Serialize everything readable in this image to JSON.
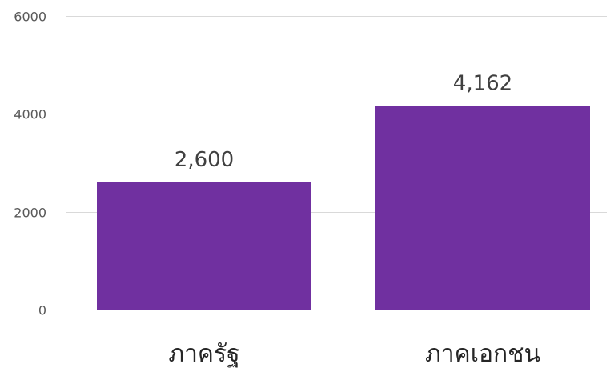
{
  "chart_data": {
    "type": "bar",
    "title": "",
    "xlabel": "",
    "ylabel": "",
    "categories": [
      "ภาครัฐ",
      "ภาคเอกชน"
    ],
    "values": [
      2600,
      4162
    ],
    "data_labels": [
      "2,600",
      "4,162"
    ],
    "ylim": [
      0,
      6000
    ],
    "yticks": [
      0,
      2000,
      4000,
      6000
    ],
    "ytick_labels": [
      "0",
      "2000",
      "4000",
      "6000"
    ],
    "grid": true,
    "legend": "none",
    "colors": {
      "bar": "#7030a0",
      "grid": "#d9d9d9"
    }
  }
}
